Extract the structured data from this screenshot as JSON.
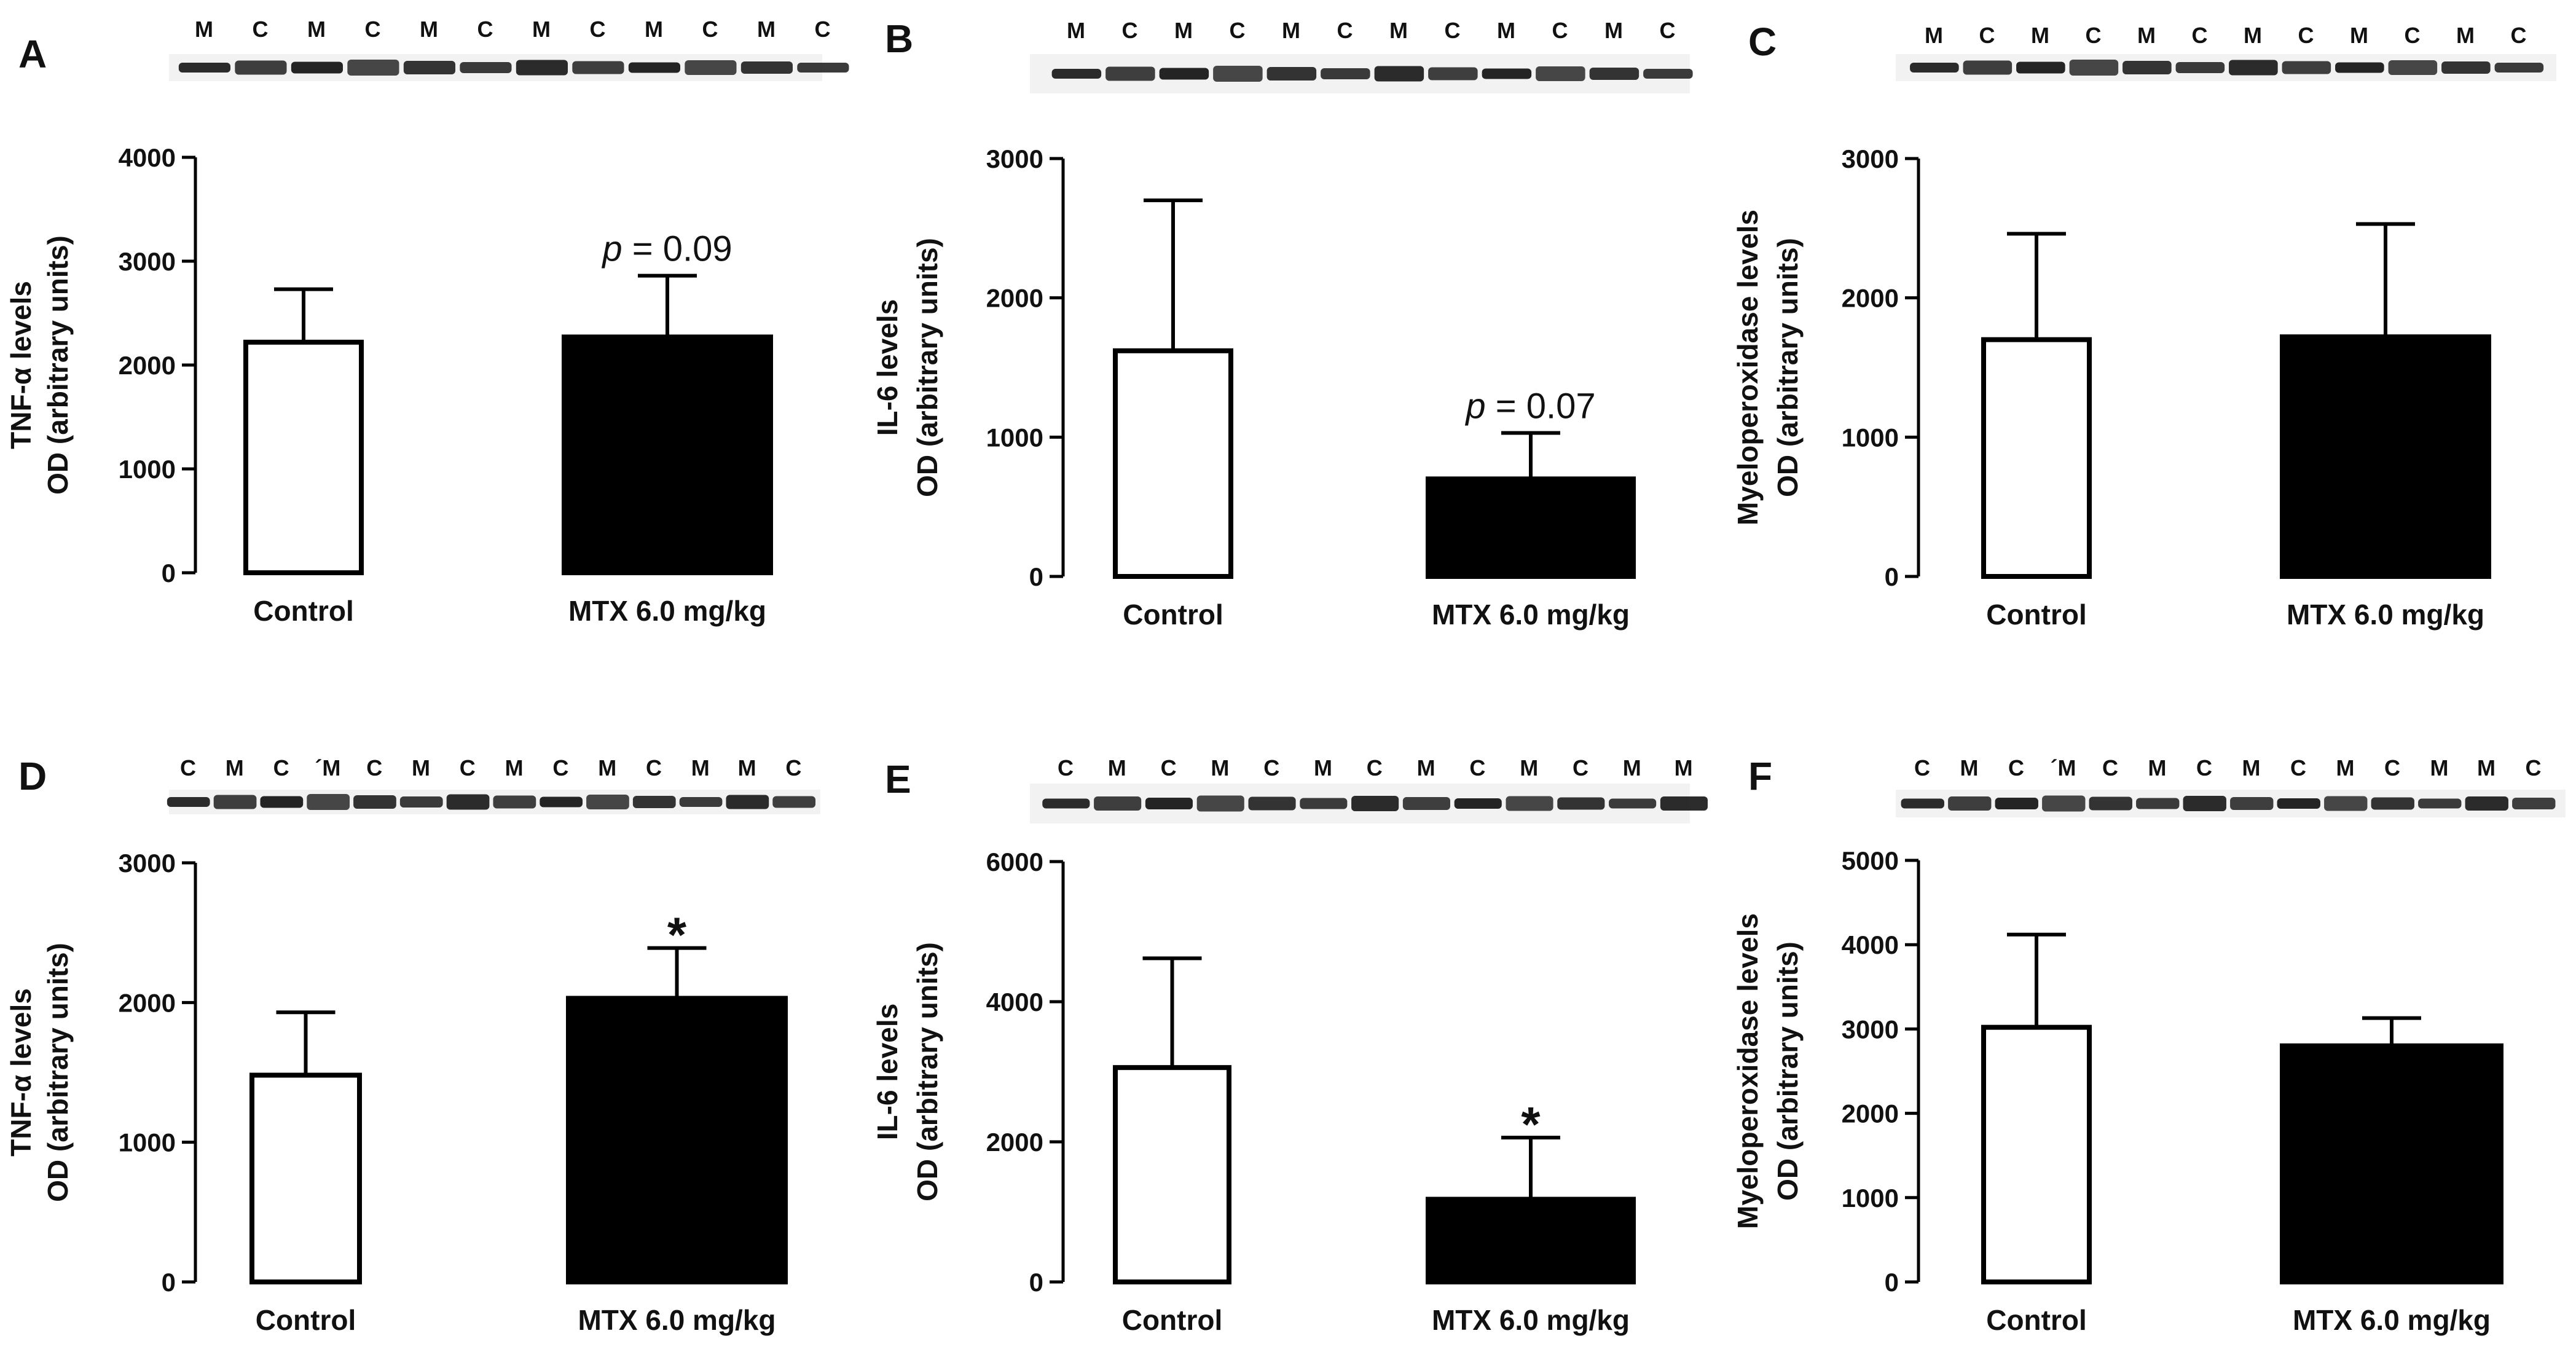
{
  "chart_data": [
    {
      "type": "bar",
      "panel": "A",
      "lanes": [
        "M",
        "C",
        "M",
        "C",
        "M",
        "C",
        "M",
        "C",
        "M",
        "C",
        "M",
        "C"
      ],
      "categories": [
        "Control",
        "MTX 6.0 mg/kg"
      ],
      "values": [
        2220,
        2270
      ],
      "errors": [
        510,
        590
      ],
      "fills": [
        "#ffffff",
        "#000000"
      ],
      "ylim": [
        0,
        4000
      ],
      "yticks": [
        0,
        1000,
        2000,
        3000,
        4000
      ],
      "ylabel_line1": "TNF-α levels",
      "ylabel_line2": "OD (arbitrary units)",
      "annotation": {
        "bar": 1,
        "prefix": "p",
        "text": " = 0.09"
      }
    },
    {
      "type": "bar",
      "panel": "B",
      "lanes": [
        "M",
        "C",
        "M",
        "C",
        "M",
        "C",
        "M",
        "C",
        "M",
        "C",
        "M",
        "C"
      ],
      "categories": [
        "Control",
        "MTX 6.0 mg/kg"
      ],
      "values": [
        1620,
        700
      ],
      "errors": [
        1080,
        330
      ],
      "fills": [
        "#ffffff",
        "#000000"
      ],
      "ylim": [
        0,
        3000
      ],
      "yticks": [
        0,
        1000,
        2000,
        3000
      ],
      "ylabel_line1": "IL-6 levels",
      "ylabel_line2": "OD (arbitrary units)",
      "annotation": {
        "bar": 1,
        "prefix": "p",
        "text": " = 0.07"
      }
    },
    {
      "type": "bar",
      "panel": "C",
      "lanes": [
        "M",
        "C",
        "M",
        "C",
        "M",
        "C",
        "M",
        "C",
        "M",
        "C",
        "M",
        "C"
      ],
      "categories": [
        "Control",
        "MTX 6.0 mg/kg"
      ],
      "values": [
        1700,
        1720
      ],
      "errors": [
        760,
        810
      ],
      "fills": [
        "#ffffff",
        "#000000"
      ],
      "ylim": [
        0,
        3000
      ],
      "yticks": [
        0,
        1000,
        2000,
        3000
      ],
      "ylabel_line1": "Myeloperoxidase levels",
      "ylabel_line2": "OD (arbitrary units)",
      "annotation": null
    },
    {
      "type": "bar",
      "panel": "D",
      "lanes": [
        "C",
        "M",
        "C",
        "´M",
        "C",
        "M",
        "C",
        "M",
        "C",
        "M",
        "C",
        "M",
        "M",
        "C"
      ],
      "categories": [
        "Control",
        "MTX 6.0 mg/kg"
      ],
      "values": [
        1480,
        2030
      ],
      "errors": [
        450,
        360
      ],
      "fills": [
        "#ffffff",
        "#000000"
      ],
      "ylim": [
        0,
        3000
      ],
      "yticks": [
        0,
        1000,
        2000,
        3000
      ],
      "ylabel_line1": "TNF-α levels",
      "ylabel_line2": "OD (arbitrary units)",
      "annotation": {
        "bar": 1,
        "prefix": "",
        "text": "*"
      }
    },
    {
      "type": "bar",
      "panel": "E",
      "lanes": [
        "C",
        "M",
        "C",
        "M",
        "C",
        "M",
        "C",
        "M",
        "C",
        "M",
        "C",
        "M",
        "M"
      ],
      "categories": [
        "Control",
        "MTX 6.0 mg/kg"
      ],
      "values": [
        3060,
        1180
      ],
      "errors": [
        1560,
        880
      ],
      "fills": [
        "#ffffff",
        "#000000"
      ],
      "ylim": [
        0,
        6000
      ],
      "yticks": [
        0,
        2000,
        4000,
        6000
      ],
      "ylabel_line1": "IL-6 levels",
      "ylabel_line2": "OD (arbitrary units)",
      "annotation": {
        "bar": 1,
        "prefix": "",
        "text": "*"
      }
    },
    {
      "type": "bar",
      "panel": "F",
      "lanes": [
        "C",
        "M",
        "C",
        "´M",
        "C",
        "M",
        "C",
        "M",
        "C",
        "M",
        "C",
        "M",
        "M",
        "C"
      ],
      "categories": [
        "Control",
        "MTX 6.0 mg/kg"
      ],
      "values": [
        3020,
        2800
      ],
      "errors": [
        1100,
        330
      ],
      "fills": [
        "#ffffff",
        "#000000"
      ],
      "ylim": [
        0,
        5000
      ],
      "yticks": [
        0,
        1000,
        2000,
        3000,
        4000,
        5000
      ],
      "ylabel_line1": "Myeloperoxidase levels",
      "ylabel_line2": "OD (arbitrary units)",
      "annotation": null
    }
  ]
}
